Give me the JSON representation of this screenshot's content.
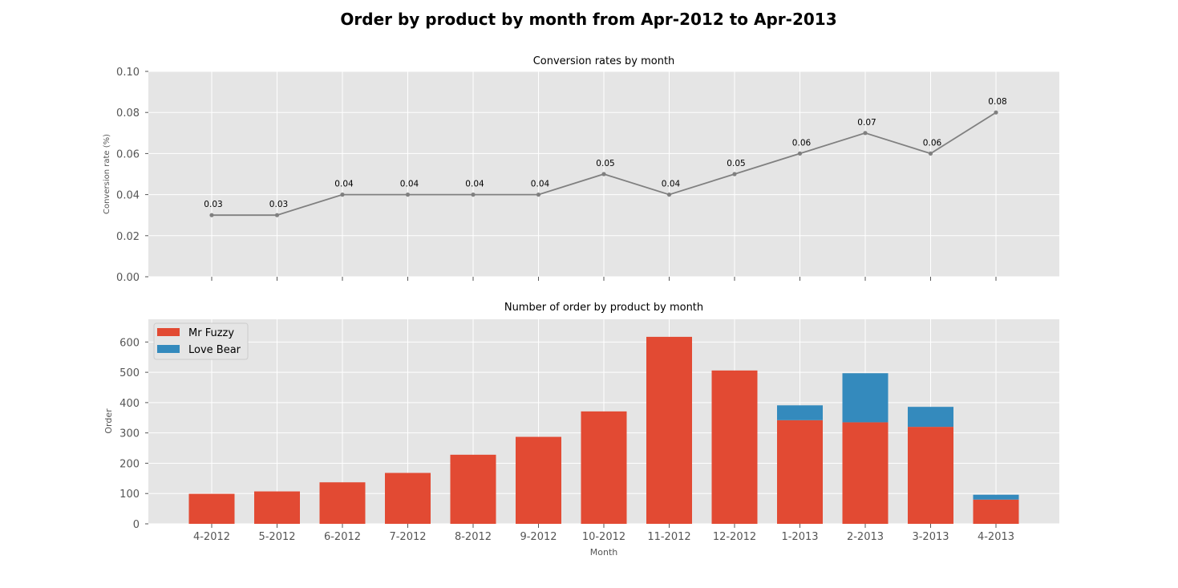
{
  "figure_title": "Order by product by month from Apr-2012 to Apr-2013",
  "colors": {
    "panel_bg": "#E5E5E5",
    "grid": "#FFFFFF",
    "line": "#808080",
    "mr_fuzzy": "#E24A33",
    "love_bear": "#348ABD"
  },
  "chart_data": [
    {
      "type": "line",
      "title": "Conversion rates by month",
      "xlabel": "",
      "ylabel": "Conversion rate (%)",
      "categories": [
        "4-2012",
        "5-2012",
        "6-2012",
        "7-2012",
        "8-2012",
        "9-2012",
        "10-2012",
        "11-2012",
        "12-2012",
        "1-2013",
        "2-2013",
        "3-2013",
        "4-2013"
      ],
      "values": [
        0.03,
        0.03,
        0.04,
        0.04,
        0.04,
        0.04,
        0.05,
        0.04,
        0.05,
        0.06,
        0.07,
        0.06,
        0.08
      ],
      "value_labels": [
        "0.03",
        "0.03",
        "0.04",
        "0.04",
        "0.04",
        "0.04",
        "0.05",
        "0.04",
        "0.05",
        "0.06",
        "0.07",
        "0.06",
        "0.08"
      ],
      "ylim": [
        0,
        0.1
      ],
      "yticks": [
        "0.00",
        "0.02",
        "0.04",
        "0.06",
        "0.08",
        "0.10"
      ],
      "grid": true
    },
    {
      "type": "bar",
      "stacked": true,
      "title": "Number of order by product by month",
      "xlabel": "Month",
      "ylabel": "Order",
      "categories": [
        "4-2012",
        "5-2012",
        "6-2012",
        "7-2012",
        "8-2012",
        "9-2012",
        "10-2012",
        "11-2012",
        "12-2012",
        "1-2013",
        "2-2013",
        "3-2013",
        "4-2013"
      ],
      "series": [
        {
          "name": "Mr Fuzzy",
          "values": [
            99,
            107,
            137,
            168,
            228,
            287,
            371,
            617,
            506,
            342,
            335,
            320,
            80
          ]
        },
        {
          "name": "Love Bear",
          "values": [
            0,
            0,
            0,
            0,
            0,
            0,
            0,
            0,
            0,
            49,
            162,
            66,
            16
          ]
        }
      ],
      "ylim": [
        0,
        675
      ],
      "yticks": [
        "0",
        "100",
        "200",
        "300",
        "400",
        "500",
        "600"
      ],
      "legend": "upper-left",
      "grid": true
    }
  ]
}
